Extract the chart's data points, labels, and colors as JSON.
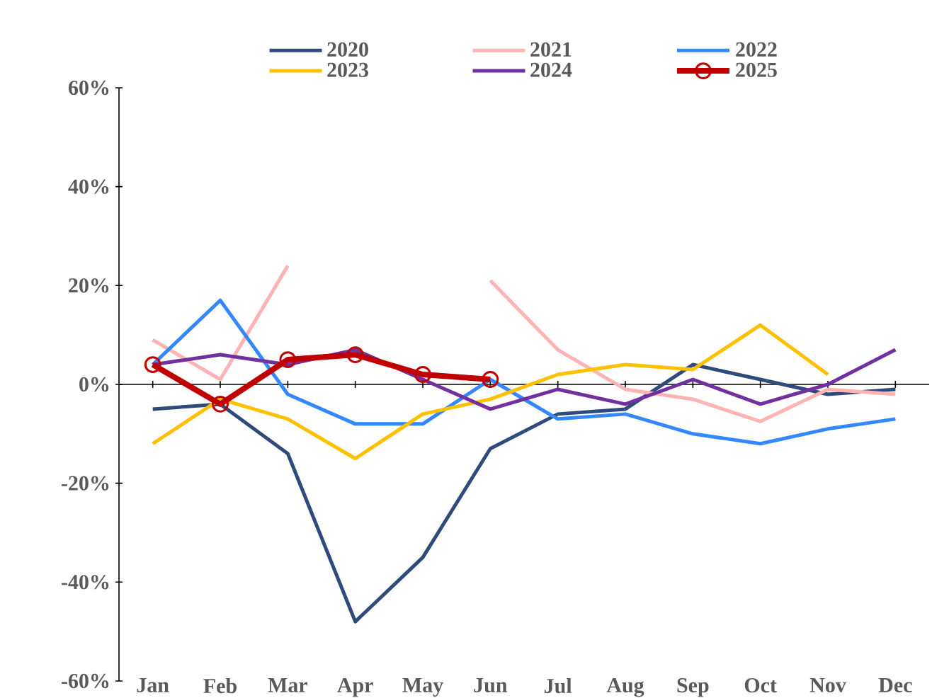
{
  "chart_data": {
    "type": "line",
    "categories": [
      "Jan",
      "Feb",
      "Mar",
      "Apr",
      "May",
      "Jun",
      "Jul",
      "Aug",
      "Sep",
      "Oct",
      "Nov",
      "Dec"
    ],
    "ylim": [
      -60,
      60
    ],
    "yticks": [
      {
        "value": -60,
        "label": "-60%"
      },
      {
        "value": -40,
        "label": "-40%"
      },
      {
        "value": -20,
        "label": "-20%"
      },
      {
        "value": 0,
        "label": "0%"
      },
      {
        "value": 20,
        "label": "20%"
      },
      {
        "value": 40,
        "label": "40%"
      },
      {
        "value": 60,
        "label": "60%"
      }
    ],
    "legend": "top",
    "marker": "none",
    "line_style": "solid",
    "series": [
      {
        "name": "2020",
        "color": "#2f4b7c",
        "values": [
          -5,
          -4,
          -14,
          -48,
          -35,
          -13,
          -6,
          -5,
          4,
          1,
          -2,
          -1
        ]
      },
      {
        "name": "2021",
        "color": "#ffb3b3",
        "values": [
          9,
          1,
          24,
          null,
          null,
          21,
          7,
          -1,
          -3,
          -7.5,
          -1,
          -2
        ]
      },
      {
        "name": "2022",
        "color": "#3388ff",
        "values": [
          4,
          17,
          -2,
          -8,
          -8,
          1,
          -7,
          -6,
          -10,
          -12,
          -9,
          -7
        ]
      },
      {
        "name": "2023",
        "color": "#ffc000",
        "values": [
          -12,
          -3,
          -7,
          -15,
          -6,
          -3,
          2,
          4,
          3,
          12,
          2,
          null
        ]
      },
      {
        "name": "2024",
        "color": "#7030a0",
        "values": [
          4,
          6,
          4,
          7,
          1,
          -5,
          -1,
          -4,
          1,
          -4,
          0,
          7
        ]
      },
      {
        "name": "2025",
        "color": "#c00000",
        "marker": "circle",
        "values": [
          4,
          -4,
          5,
          6,
          2,
          1,
          null,
          null,
          null,
          null,
          null,
          null
        ]
      }
    ]
  }
}
